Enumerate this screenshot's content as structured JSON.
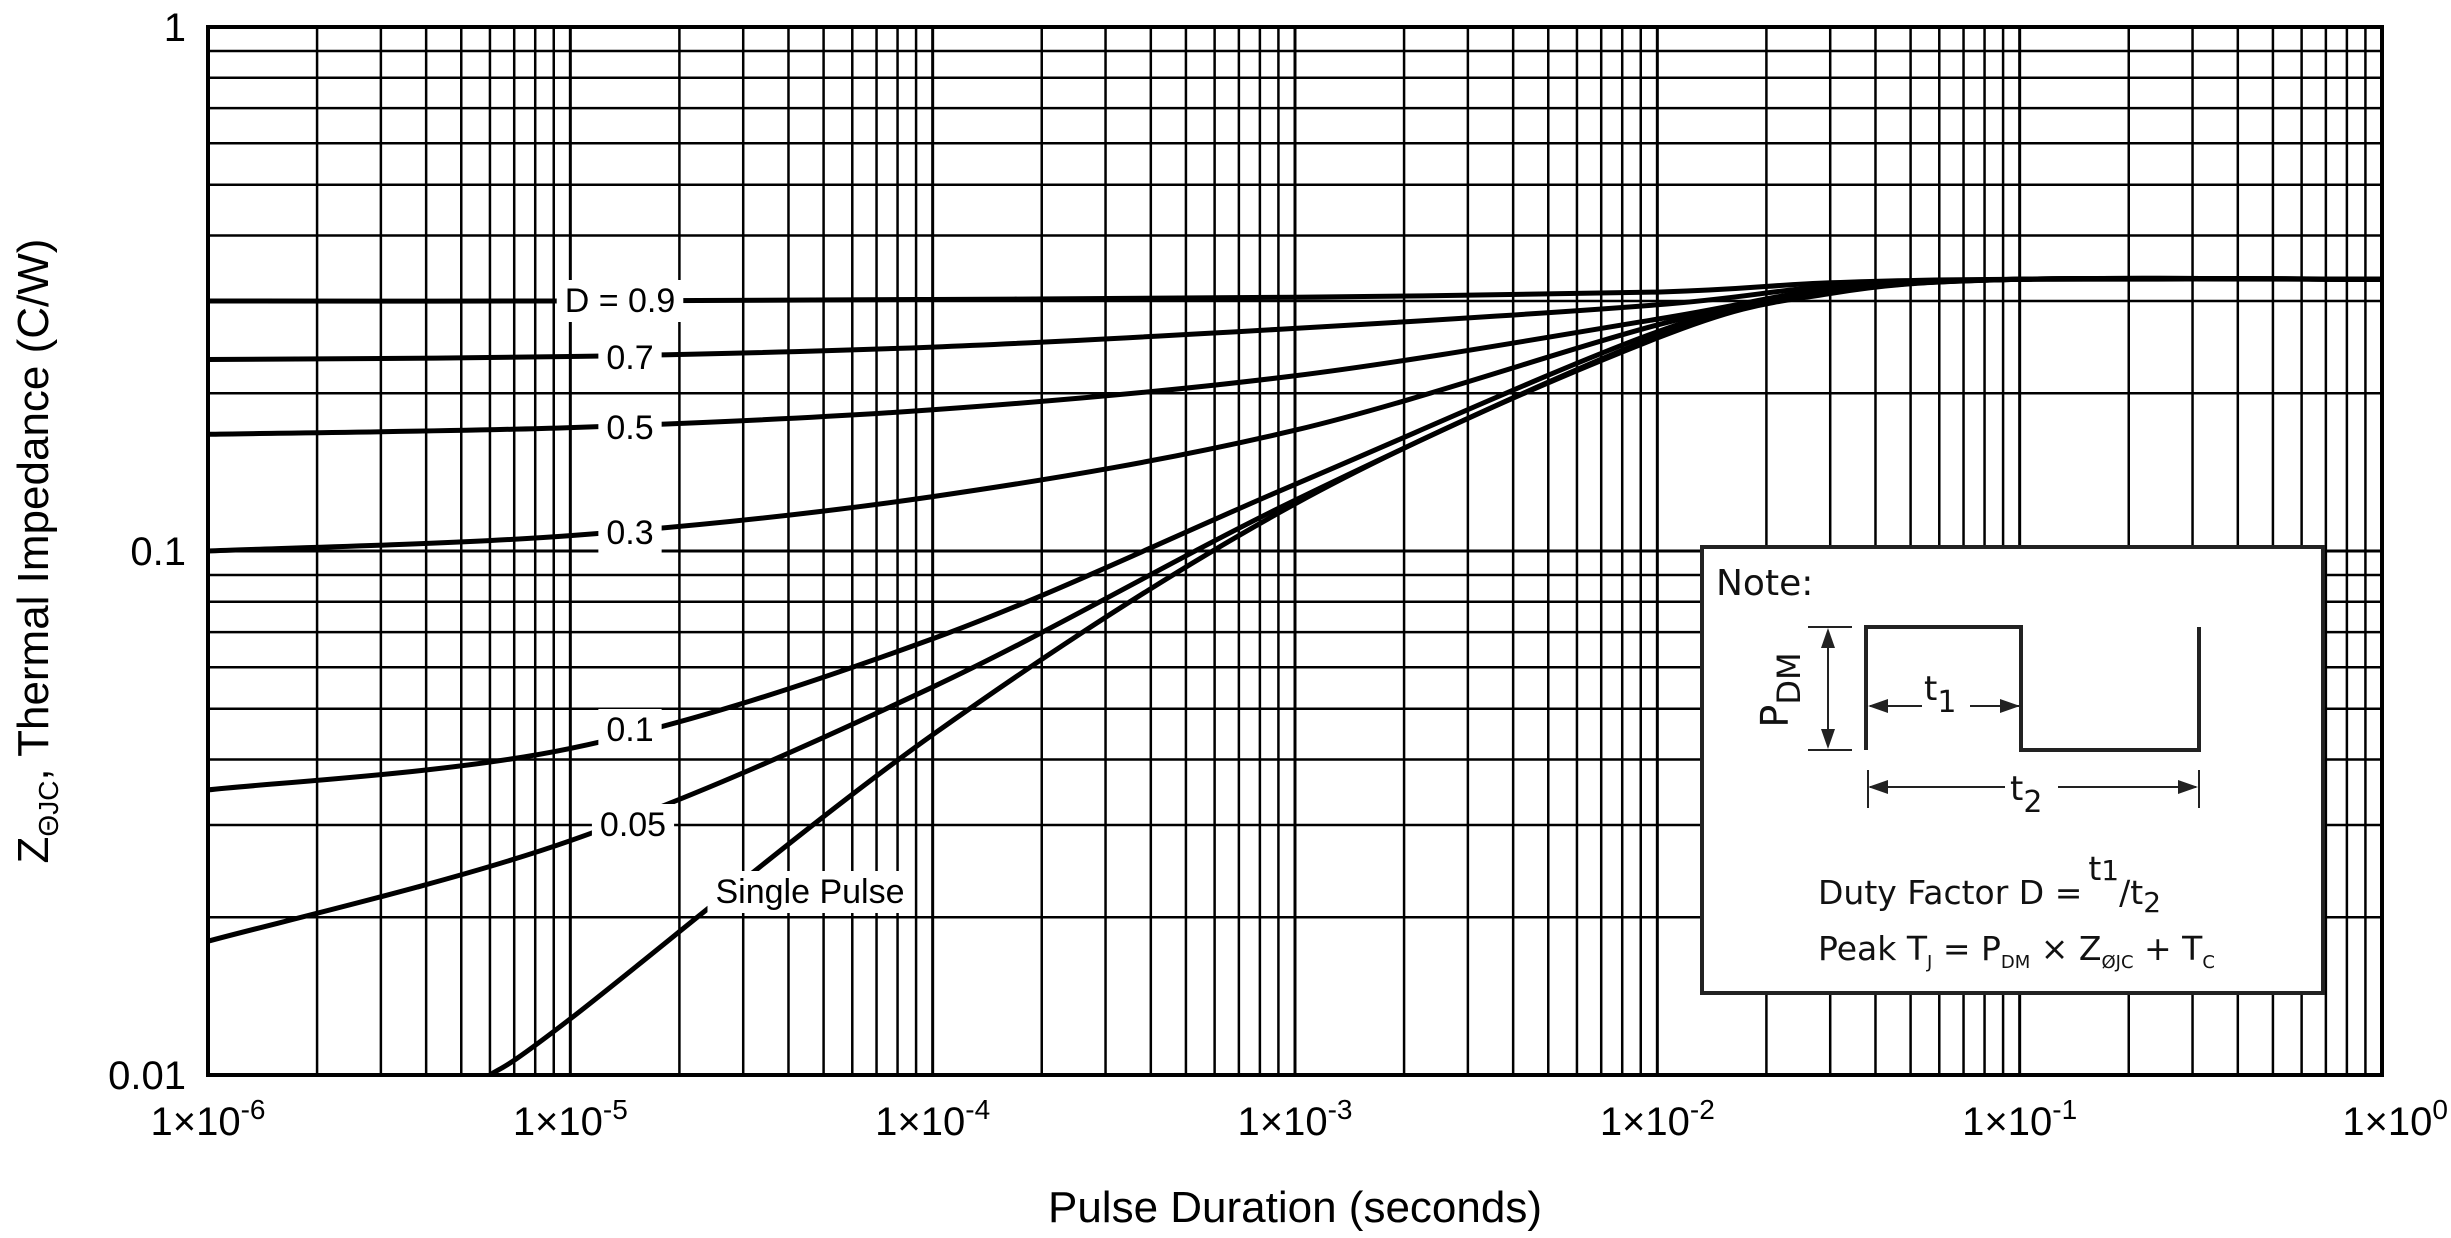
{
  "chart_data": {
    "type": "line",
    "title": "",
    "xlabel": "Pulse Duration (seconds)",
    "ylabel_main": "Z",
    "ylabel_sub": "ΘJC",
    "ylabel_rest": ", Thermal Impedance (C/W)",
    "x_scale": "log",
    "y_scale": "log",
    "xlim": [
      1e-06,
      1
    ],
    "ylim": [
      0.01,
      1
    ],
    "grid": true,
    "x_ticks": [
      {
        "value": 1e-06,
        "base": "1×10",
        "exp": "-6"
      },
      {
        "value": 1e-05,
        "base": "1×10",
        "exp": "-5"
      },
      {
        "value": 0.0001,
        "base": "1×10",
        "exp": "-4"
      },
      {
        "value": 0.001,
        "base": "1×10",
        "exp": "-3"
      },
      {
        "value": 0.01,
        "base": "1×10",
        "exp": "-2"
      },
      {
        "value": 0.1,
        "base": "1×10",
        "exp": "-1"
      },
      {
        "value": 1,
        "base": "1×10",
        "exp": "0"
      }
    ],
    "y_ticks": [
      {
        "value": 1,
        "label": "1"
      },
      {
        "value": 0.1,
        "label": "0.1"
      },
      {
        "value": 0.01,
        "label": "0.01"
      }
    ],
    "series": [
      {
        "name": "D = 0.9",
        "x": [
          1e-06,
          1e-05,
          0.0001,
          0.001,
          0.01,
          0.03,
          0.1,
          1
        ],
        "y": [
          0.3,
          0.3,
          0.302,
          0.305,
          0.312,
          0.325,
          0.33,
          0.33
        ]
      },
      {
        "name": "0.7",
        "x": [
          1e-06,
          1e-05,
          0.0001,
          0.001,
          0.01,
          0.03,
          0.1,
          1
        ],
        "y": [
          0.232,
          0.235,
          0.245,
          0.266,
          0.295,
          0.32,
          0.33,
          0.33
        ]
      },
      {
        "name": "0.5",
        "x": [
          1e-06,
          1e-05,
          0.0001,
          0.001,
          0.01,
          0.03,
          0.1,
          1
        ],
        "y": [
          0.167,
          0.172,
          0.186,
          0.216,
          0.277,
          0.316,
          0.33,
          0.33
        ]
      },
      {
        "name": "0.3",
        "x": [
          1e-06,
          1e-05,
          0.0001,
          0.001,
          0.01,
          0.03,
          0.1,
          1
        ],
        "y": [
          0.1,
          0.107,
          0.127,
          0.17,
          0.27,
          0.314,
          0.33,
          0.33
        ]
      },
      {
        "name": "0.1",
        "x": [
          1e-06,
          1e-05,
          0.0001,
          0.001,
          0.01,
          0.03,
          0.1,
          1
        ],
        "y": [
          0.035,
          0.042,
          0.068,
          0.134,
          0.262,
          0.312,
          0.33,
          0.33
        ]
      },
      {
        "name": "0.05",
        "x": [
          1e-06,
          1e-05,
          0.0001,
          0.001,
          0.01,
          0.03,
          0.1,
          1
        ],
        "y": [
          0.018,
          0.028,
          0.055,
          0.125,
          0.257,
          0.311,
          0.33,
          0.33
        ]
      },
      {
        "name": "Single Pulse",
        "x": [
          6e-06,
          1e-05,
          0.0001,
          0.001,
          0.01,
          0.03,
          0.1,
          1
        ],
        "y": [
          0.01,
          0.0128,
          0.0446,
          0.123,
          0.255,
          0.31,
          0.33,
          0.33
        ]
      }
    ],
    "note": {
      "heading": "Note:",
      "pdm_main": "P",
      "pdm_sub": "DM",
      "t1_main": "t",
      "t1_sub": "1",
      "t2_main": "t",
      "t2_sub": "2",
      "duty_text": "Duty Factor D =",
      "duty_t1": "t",
      "duty_t1_sub": "1",
      "duty_slash": "/t",
      "duty_t2_sub": "2",
      "peak_a": "Peak T",
      "peak_a_sub": "J",
      "peak_b": " = P",
      "peak_b_sub": "DM",
      "peak_c": " × Z",
      "peak_c_sub": "ØJC",
      "peak_d": " + T",
      "peak_d_sub": "C"
    }
  }
}
